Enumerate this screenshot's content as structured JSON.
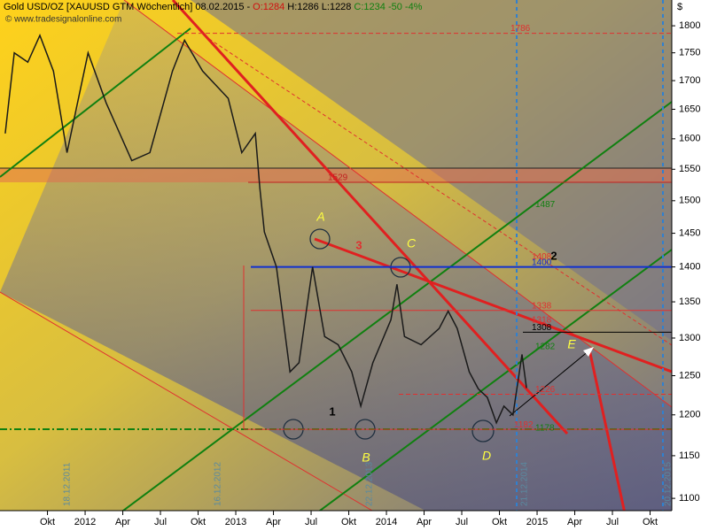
{
  "chart_data": {
    "type": "line",
    "title_parts": [
      {
        "text": "Gold USD/OZ [XAUUSD GTM  Wöchentlich] 08.02.2015 -",
        "color": "#000000"
      },
      {
        "text": "O:1284",
        "color": "#d01010"
      },
      {
        "text": "H:1286 L:1228",
        "color": "#000000"
      },
      {
        "text": "C:1234 -50 -4%",
        "color": "#108010"
      }
    ],
    "watermark": "© www.tradesignalonline.com",
    "y_unit": "$",
    "log_scale": true,
    "xlim": [
      2011.435,
      2015.894
    ],
    "ylim": [
      1086,
      1849
    ],
    "yticks": [
      1100,
      1150,
      1200,
      1250,
      1300,
      1350,
      1400,
      1450,
      1500,
      1550,
      1600,
      1650,
      1700,
      1750,
      1800
    ],
    "xticks": [
      {
        "value": 2011.75,
        "label": "Okt"
      },
      2012,
      {
        "value": 2012.25,
        "label": "Apr"
      },
      {
        "value": 2012.5,
        "label": "Jul"
      },
      {
        "value": 2012.75,
        "label": "Okt"
      },
      2013,
      {
        "value": 2013.25,
        "label": "Apr"
      },
      {
        "value": 2013.5,
        "label": "Jul"
      },
      {
        "value": 2013.75,
        "label": "Okt"
      },
      2014,
      {
        "value": 2014.25,
        "label": "Apr"
      },
      {
        "value": 2014.5,
        "label": "Jul"
      },
      {
        "value": 2014.75,
        "label": "Okt"
      },
      2015,
      {
        "value": 2015.25,
        "label": "Apr"
      },
      {
        "value": 2015.5,
        "label": "Jul"
      },
      {
        "value": 2015.75,
        "label": "Okt"
      }
    ],
    "series": [
      {
        "name": "XAUUSD",
        "color": "#1a1a1a",
        "x": [
          2011.47,
          2011.53,
          2011.62,
          2011.7,
          2011.79,
          2011.88,
          2012.02,
          2012.14,
          2012.31,
          2012.43,
          2012.58,
          2012.66,
          2012.78,
          2012.95,
          2013.04,
          2013.13,
          2013.16,
          2013.19,
          2013.27,
          2013.36,
          2013.42,
          2013.51,
          2013.59,
          2013.68,
          2013.77,
          2013.83,
          2013.91,
          2014.03,
          2014.07,
          2014.12,
          2014.23,
          2014.35,
          2014.41,
          2014.47,
          2014.55,
          2014.61,
          2014.67,
          2014.73,
          2014.78,
          2014.84,
          2014.9,
          2014.93
        ],
        "values": [
          1609,
          1750,
          1733,
          1782,
          1717,
          1577,
          1750,
          1661,
          1564,
          1577,
          1717,
          1773,
          1717,
          1669,
          1577,
          1609,
          1520,
          1452,
          1400,
          1255,
          1267,
          1400,
          1302,
          1291,
          1255,
          1211,
          1267,
          1325,
          1375,
          1302,
          1291,
          1313,
          1337,
          1313,
          1255,
          1233,
          1222,
          1190,
          1211,
          1200,
          1278,
          1234
        ]
      }
    ],
    "levels": [
      {
        "value": 1786,
        "color": "#e03030"
      },
      {
        "value": 1529,
        "color": "#c02020"
      },
      {
        "value": 1487,
        "color": "#108010"
      },
      {
        "value": 1408,
        "color": "#e03030"
      },
      {
        "value": 1400,
        "color": "#1030d0"
      },
      {
        "value": 1338,
        "color": "#e03030"
      },
      {
        "value": 1318,
        "color": "#e03030"
      },
      {
        "value": 1308,
        "color": "#000000"
      },
      {
        "value": 1282,
        "color": "#108010"
      },
      {
        "value": 1226,
        "color": "#e03030"
      },
      {
        "value": 1182,
        "color": "#e03030"
      },
      {
        "value": 1178,
        "color": "#108010"
      }
    ],
    "annotations": [
      {
        "text": "A",
        "color": "#ffff40"
      },
      {
        "text": "B",
        "color": "#ffff40"
      },
      {
        "text": "C",
        "color": "#ffff40"
      },
      {
        "text": "D",
        "color": "#ffff40"
      },
      {
        "text": "E",
        "color": "#ffff40"
      },
      {
        "text": "1",
        "color": "#000000"
      },
      {
        "text": "2",
        "color": "#000000"
      },
      {
        "text": "3",
        "color": "#e03030"
      }
    ],
    "date_labels": [
      "18.12.2011",
      "16.12.2012",
      "22.12.2013",
      "21.12.2014",
      "20.12.2015"
    ]
  }
}
